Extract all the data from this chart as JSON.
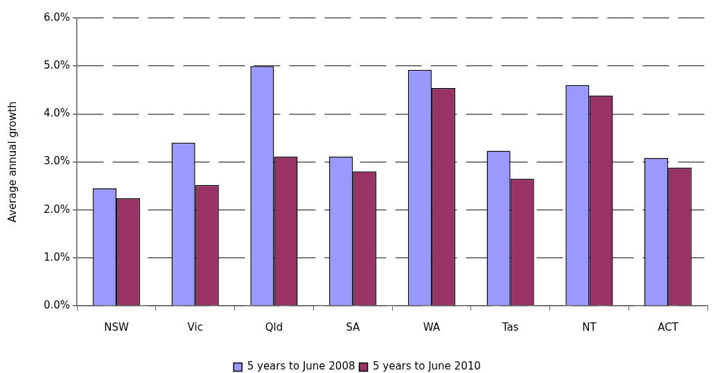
{
  "chart_data": {
    "type": "bar",
    "ylabel": "Average annual growth",
    "categories": [
      "NSW",
      "Vic",
      "Qld",
      "SA",
      "WA",
      "Tas",
      "NT",
      "ACT"
    ],
    "series": [
      {
        "name": "5 years to June 2008",
        "color": "#9999ff",
        "values": [
          2.45,
          3.4,
          5.0,
          3.11,
          4.92,
          3.23,
          4.6,
          3.08
        ]
      },
      {
        "name": "5 years to June 2010",
        "color": "#993366",
        "values": [
          2.24,
          2.52,
          3.11,
          2.8,
          4.54,
          2.65,
          4.38,
          2.88
        ]
      }
    ],
    "ylim": [
      0,
      6
    ],
    "yticks": [
      {
        "value": 0,
        "label": "0.0%"
      },
      {
        "value": 1,
        "label": "1.0%"
      },
      {
        "value": 2,
        "label": "2.0%"
      },
      {
        "value": 3,
        "label": "3.0%"
      },
      {
        "value": 4,
        "label": "4.0%"
      },
      {
        "value": 5,
        "label": "5.0%"
      },
      {
        "value": 6,
        "label": "6.0%"
      }
    ],
    "grid": "y",
    "legend": "bottom"
  }
}
